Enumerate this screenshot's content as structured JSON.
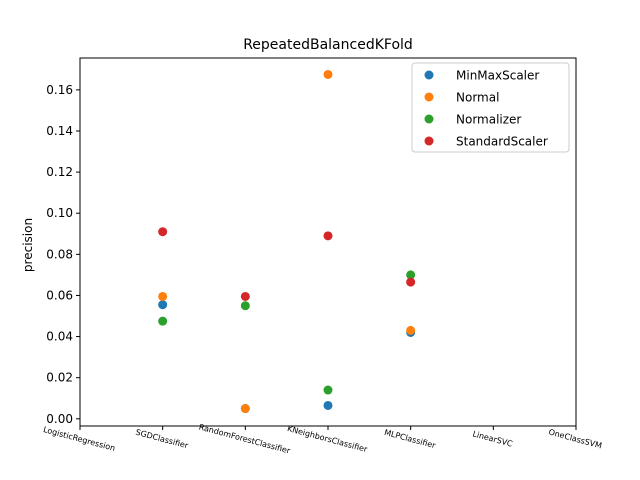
{
  "chart_data": {
    "type": "scatter",
    "title": "RepeatedBalancedKFold",
    "xlabel": "",
    "ylabel": "precision",
    "categories": [
      "LogisticRegression",
      "SGDClassifier",
      "RandomForestClassifier",
      "KNeighborsClassifier",
      "MLPClassifier",
      "LinearSVC",
      "OneClassSVM"
    ],
    "ylim": [
      -0.0035,
      0.1755
    ],
    "yticks": [
      "0.00",
      "0.02",
      "0.04",
      "0.06",
      "0.08",
      "0.10",
      "0.12",
      "0.14",
      "0.16"
    ],
    "ytick_values": [
      0,
      0.02,
      0.04,
      0.06,
      0.08,
      0.1,
      0.12,
      0.14,
      0.16
    ],
    "grid": false,
    "legend_position": "top-right",
    "series": [
      {
        "name": "MinMaxScaler",
        "color": "#1f77b4",
        "values": [
          null,
          0.0555,
          0.005,
          0.0065,
          0.042,
          null,
          null
        ]
      },
      {
        "name": "Normal",
        "color": "#ff7f0e",
        "values": [
          null,
          0.0595,
          0.005,
          0.1675,
          0.043,
          null,
          null
        ]
      },
      {
        "name": "Normalizer",
        "color": "#2ca02c",
        "values": [
          null,
          0.0475,
          0.055,
          0.014,
          0.07,
          null,
          null
        ]
      },
      {
        "name": "StandardScaler",
        "color": "#d62728",
        "values": [
          null,
          0.091,
          0.0595,
          0.089,
          0.0665,
          null,
          null
        ]
      }
    ]
  }
}
